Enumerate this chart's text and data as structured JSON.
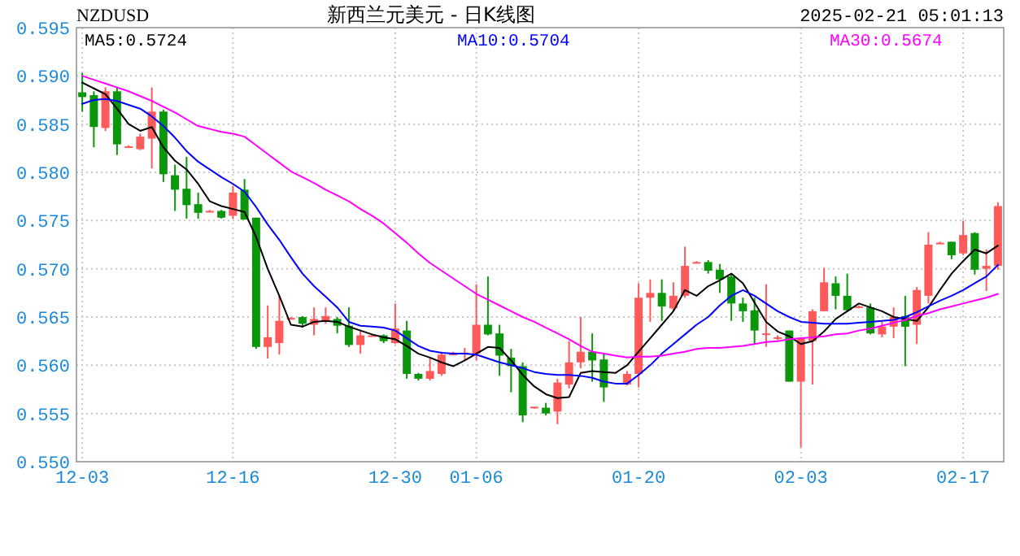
{
  "chart_data": {
    "type": "candlestick",
    "title": "新西兰元美元 - 日K线图",
    "annotations": [
      "NZDUSD",
      "2025-02-21 05:01:13"
    ],
    "categories": [
      "12-03",
      null,
      null,
      null,
      null,
      null,
      null,
      null,
      null,
      null,
      null,
      null,
      null,
      "12-16",
      null,
      null,
      null,
      null,
      null,
      null,
      null,
      null,
      null,
      null,
      null,
      null,
      null,
      "12-30",
      null,
      null,
      null,
      null,
      null,
      null,
      "01-06",
      null,
      null,
      null,
      null,
      null,
      null,
      null,
      null,
      null,
      null,
      null,
      null,
      null,
      "01-20",
      null,
      null,
      null,
      null,
      null,
      null,
      null,
      null,
      null,
      null,
      null,
      null,
      null,
      "02-03",
      null,
      null,
      null,
      null,
      null,
      null,
      null,
      null,
      null,
      null,
      null,
      null,
      null,
      "02-17",
      null,
      null,
      null
    ],
    "ohlc": [
      [
        0.5883,
        0.5903,
        0.5863,
        0.5878
      ],
      [
        0.588,
        0.5884,
        0.5826,
        0.5847
      ],
      [
        0.5846,
        0.5888,
        0.5843,
        0.5884
      ],
      [
        0.5884,
        0.5888,
        0.5818,
        0.5829
      ],
      [
        0.5826,
        0.5828,
        0.5826,
        0.5827
      ],
      [
        0.5824,
        0.584,
        0.5823,
        0.5837
      ],
      [
        0.5835,
        0.5888,
        0.5804,
        0.5863
      ],
      [
        0.5863,
        0.5865,
        0.579,
        0.5798
      ],
      [
        0.5797,
        0.5808,
        0.576,
        0.5782
      ],
      [
        0.5783,
        0.5816,
        0.5752,
        0.5766
      ],
      [
        0.5767,
        0.5779,
        0.5752,
        0.5758
      ],
      [
        0.576,
        0.5761,
        0.5759,
        0.576
      ],
      [
        0.576,
        0.5761,
        0.5752,
        0.5753
      ],
      [
        0.5755,
        0.5786,
        0.5752,
        0.5779
      ],
      [
        0.5782,
        0.5793,
        0.5751,
        0.5751
      ],
      [
        0.5753,
        0.5753,
        0.5617,
        0.5619
      ],
      [
        0.5619,
        0.5662,
        0.5607,
        0.5629
      ],
      [
        0.5623,
        0.5672,
        0.5611,
        0.5646
      ],
      [
        0.5649,
        0.565,
        0.5648,
        0.5649
      ],
      [
        0.565,
        0.5651,
        0.5639,
        0.5643
      ],
      [
        0.5642,
        0.566,
        0.5631,
        0.5648
      ],
      [
        0.5645,
        0.566,
        0.5643,
        0.5651
      ],
      [
        0.5648,
        0.565,
        0.5633,
        0.5641
      ],
      [
        0.5641,
        0.566,
        0.5619,
        0.5621
      ],
      [
        0.5621,
        0.5636,
        0.5612,
        0.5631
      ],
      [
        0.5631,
        0.5632,
        0.563,
        0.5631
      ],
      [
        0.5631,
        0.5632,
        0.5623,
        0.5625
      ],
      [
        0.5623,
        0.5664,
        0.5622,
        0.5638
      ],
      [
        0.5636,
        0.5646,
        0.5586,
        0.5591
      ],
      [
        0.5591,
        0.5592,
        0.5584,
        0.5586
      ],
      [
        0.5586,
        0.5608,
        0.5584,
        0.5594
      ],
      [
        0.5591,
        0.5614,
        0.5589,
        0.5611
      ],
      [
        0.5612,
        0.5614,
        0.5611,
        0.5612
      ],
      [
        0.5612,
        0.5618,
        0.5605,
        0.5613
      ],
      [
        0.5612,
        0.5684,
        0.5605,
        0.5642
      ],
      [
        0.5642,
        0.5692,
        0.5631,
        0.5632
      ],
      [
        0.5633,
        0.5642,
        0.5589,
        0.561
      ],
      [
        0.5608,
        0.5617,
        0.5572,
        0.5599
      ],
      [
        0.5599,
        0.5603,
        0.5541,
        0.5548
      ],
      [
        0.5556,
        0.5557,
        0.5555,
        0.5557
      ],
      [
        0.5556,
        0.5561,
        0.5548,
        0.555
      ],
      [
        0.5552,
        0.5586,
        0.5539,
        0.5582
      ],
      [
        0.558,
        0.5625,
        0.5576,
        0.5603
      ],
      [
        0.5603,
        0.565,
        0.5597,
        0.5614
      ],
      [
        0.5614,
        0.5633,
        0.5583,
        0.5605
      ],
      [
        0.5606,
        0.5612,
        0.5562,
        0.5577
      ],
      null,
      [
        0.558,
        0.5594,
        0.5579,
        0.5591
      ],
      [
        0.5591,
        0.5685,
        0.5577,
        0.567
      ],
      [
        0.567,
        0.5689,
        0.5645,
        0.5675
      ],
      [
        0.5675,
        0.5689,
        0.5646,
        0.5661
      ],
      [
        0.5659,
        0.5686,
        0.5656,
        0.5672
      ],
      [
        0.5672,
        0.5723,
        0.567,
        0.5703
      ],
      [
        0.5707,
        0.5708,
        0.5706,
        0.5707
      ],
      [
        0.5707,
        0.5709,
        0.5695,
        0.5698
      ],
      [
        0.5699,
        0.5705,
        0.5675,
        0.5689
      ],
      [
        0.5692,
        0.5695,
        0.5646,
        0.5664
      ],
      [
        0.5664,
        0.567,
        0.5645,
        0.5656
      ],
      [
        0.5657,
        0.567,
        0.5622,
        0.5636
      ],
      [
        0.5632,
        0.5684,
        0.5619,
        0.5633
      ],
      [
        0.5628,
        0.5631,
        0.5626,
        0.5629
      ],
      [
        0.5636,
        0.5636,
        0.5583,
        0.5583
      ],
      [
        0.5583,
        0.5628,
        0.5515,
        0.5628
      ],
      [
        0.5625,
        0.5658,
        0.558,
        0.5656
      ],
      [
        0.5656,
        0.5701,
        0.5656,
        0.5686
      ],
      [
        0.5685,
        0.5692,
        0.5658,
        0.5672
      ],
      [
        0.5672,
        0.5695,
        0.5655,
        0.5657
      ],
      [
        0.566,
        0.5662,
        0.5659,
        0.5661
      ],
      [
        0.566,
        0.5664,
        0.5632,
        0.5633
      ],
      [
        0.5632,
        0.5645,
        0.5629,
        0.564
      ],
      [
        0.564,
        0.566,
        0.5628,
        0.565
      ],
      [
        0.5651,
        0.5672,
        0.5599,
        0.564
      ],
      [
        0.5642,
        0.5681,
        0.5622,
        0.5678
      ],
      [
        0.5672,
        0.5738,
        0.5664,
        0.5725
      ],
      [
        0.5727,
        0.5728,
        0.5726,
        0.5727
      ],
      [
        0.5728,
        0.5728,
        0.571,
        0.5714
      ],
      [
        0.5716,
        0.575,
        0.5714,
        0.5735
      ],
      [
        0.5737,
        0.5738,
        0.5694,
        0.5699
      ],
      [
        0.57,
        0.572,
        0.5677,
        0.5703
      ],
      [
        0.5703,
        0.5769,
        0.5699,
        0.5765
      ]
    ],
    "colors": [
      "#0b960b",
      "#0b960b",
      "#ff5a5a",
      "#0b960b",
      "#ff5a5a",
      "#ff5a5a",
      "#ff5a5a",
      "#0b960b",
      "#0b960b",
      "#0b960b",
      "#0b960b",
      "#ff5a5a",
      "#0b960b",
      "#ff5a5a",
      "#0b960b",
      "#0b960b",
      "#ff5a5a",
      "#ff5a5a",
      "#ff5a5a",
      "#0b960b",
      "#ff5a5a",
      "#ff5a5a",
      "#0b960b",
      "#0b960b",
      "#ff5a5a",
      "#ff5a5a",
      "#0b960b",
      "#ff5a5a",
      "#0b960b",
      "#0b960b",
      "#ff5a5a",
      "#ff5a5a",
      "#ff5a5a",
      "#ff5a5a",
      "#ff5a5a",
      "#0b960b",
      "#0b960b",
      "#0b960b",
      "#0b960b",
      "#ff5a5a",
      "#0b960b",
      "#ff5a5a",
      "#ff5a5a",
      "#ff5a5a",
      "#0b960b",
      "#0b960b",
      null,
      "#ff5a5a",
      "#ff5a5a",
      "#ff5a5a",
      "#0b960b",
      "#ff5a5a",
      "#ff5a5a",
      "#ff5a5a",
      "#0b960b",
      "#0b960b",
      "#0b960b",
      "#0b960b",
      "#0b960b",
      "#ff5a5a",
      "#ff5a5a",
      "#0b960b",
      "#ff5a5a",
      "#ff5a5a",
      "#ff5a5a",
      "#0b960b",
      "#0b960b",
      "#ff5a5a",
      "#0b960b",
      "#ff5a5a",
      "#ff5a5a",
      "#0b960b",
      "#ff5a5a",
      "#ff5a5a",
      "#ff5a5a",
      "#0b960b",
      "#ff5a5a",
      "#0b960b",
      "#ff5a5a",
      "#ff5a5a"
    ],
    "series": [
      {
        "name": "MA5:0.5724",
        "type": "line",
        "color": "#000000",
        "values": [
          0.5893,
          0.5887,
          0.5881,
          0.5866,
          0.585,
          0.5843,
          0.5847,
          0.5826,
          0.5812,
          0.5803,
          0.5788,
          0.577,
          0.5765,
          0.5762,
          0.5759,
          0.5733,
          0.57,
          0.5672,
          0.5642,
          0.564,
          0.5645,
          0.5646,
          0.5645,
          0.564,
          0.5636,
          0.5632,
          0.5629,
          0.5627,
          0.562,
          0.5612,
          0.5608,
          0.5603,
          0.5599,
          0.5605,
          0.5612,
          0.5619,
          0.5618,
          0.5605,
          0.559,
          0.5578,
          0.557,
          0.5566,
          0.5567,
          0.5592,
          0.5594,
          0.5593,
          0.5592,
          0.56,
          0.5614,
          0.5628,
          0.5642,
          0.5656,
          0.5678,
          0.5672,
          0.5682,
          0.5688,
          0.5695,
          0.5685,
          0.5665,
          0.5645,
          0.5635,
          0.563,
          0.5622,
          0.5625,
          0.5635,
          0.5648,
          0.5656,
          0.5664,
          0.566,
          0.5656,
          0.565,
          0.5648,
          0.5646,
          0.566,
          0.5678,
          0.5695,
          0.5708,
          0.572,
          0.5716,
          0.5724
        ]
      },
      {
        "name": "MA10:0.5704",
        "type": "line",
        "color": "#0000ff",
        "values": [
          0.5871,
          0.5875,
          0.5876,
          0.5874,
          0.587,
          0.5866,
          0.5858,
          0.5848,
          0.5836,
          0.5822,
          0.5811,
          0.5803,
          0.5795,
          0.5788,
          0.578,
          0.5764,
          0.5746,
          0.573,
          0.5712,
          0.5695,
          0.5682,
          0.5671,
          0.566,
          0.5645,
          0.5641,
          0.564,
          0.5639,
          0.5636,
          0.5628,
          0.562,
          0.5615,
          0.5613,
          0.5612,
          0.5612,
          0.5611,
          0.5607,
          0.5603,
          0.56,
          0.5597,
          0.5593,
          0.5591,
          0.559,
          0.559,
          0.5589,
          0.5587,
          0.5583,
          0.5581,
          0.5581,
          0.559,
          0.56,
          0.5612,
          0.5622,
          0.5632,
          0.5642,
          0.565,
          0.5662,
          0.5672,
          0.5678,
          0.5672,
          0.5664,
          0.5656,
          0.565,
          0.5645,
          0.5644,
          0.5643,
          0.5643,
          0.5643,
          0.5644,
          0.5645,
          0.5646,
          0.5647,
          0.565,
          0.5655,
          0.5661,
          0.5667,
          0.5672,
          0.5678,
          0.5685,
          0.5692,
          0.5704
        ]
      },
      {
        "name": "MA30:0.5674",
        "type": "line",
        "color": "#ff00ff",
        "values": [
          0.59,
          0.5896,
          0.5892,
          0.5888,
          0.5884,
          0.5879,
          0.5874,
          0.5868,
          0.5862,
          0.5855,
          0.5848,
          0.5845,
          0.5842,
          0.584,
          0.5837,
          0.5828,
          0.5819,
          0.581,
          0.5801,
          0.5795,
          0.5789,
          0.5782,
          0.5776,
          0.577,
          0.5762,
          0.5755,
          0.5747,
          0.5737,
          0.5727,
          0.5716,
          0.5706,
          0.5698,
          0.569,
          0.5682,
          0.5674,
          0.5668,
          0.5662,
          0.5656,
          0.565,
          0.5645,
          0.5639,
          0.5633,
          0.5627,
          0.562,
          0.5614,
          0.5612,
          0.561,
          0.5608,
          0.5609,
          0.5609,
          0.561,
          0.5612,
          0.5614,
          0.5617,
          0.5618,
          0.5618,
          0.5619,
          0.562,
          0.5622,
          0.5624,
          0.5625,
          0.5627,
          0.5628,
          0.5629,
          0.563,
          0.5632,
          0.5633,
          0.5636,
          0.5638,
          0.5641,
          0.5644,
          0.5647,
          0.5651,
          0.5654,
          0.5658,
          0.5661,
          0.5664,
          0.5667,
          0.567,
          0.5674
        ]
      }
    ],
    "ylim": [
      0.55,
      0.595
    ],
    "yticks": [
      {
        "value": 0.55,
        "label": "0.550"
      },
      {
        "value": 0.555,
        "label": "0.555"
      },
      {
        "value": 0.56,
        "label": "0.560"
      },
      {
        "value": 0.565,
        "label": "0.565"
      },
      {
        "value": 0.57,
        "label": "0.570"
      },
      {
        "value": 0.575,
        "label": "0.575"
      },
      {
        "value": 0.58,
        "label": "0.580"
      },
      {
        "value": 0.585,
        "label": "0.585"
      },
      {
        "value": 0.59,
        "label": "0.590"
      },
      {
        "value": 0.595,
        "label": "0.595"
      }
    ],
    "grid": true,
    "legend": "top",
    "line_style": "solid",
    "marker": "none"
  }
}
